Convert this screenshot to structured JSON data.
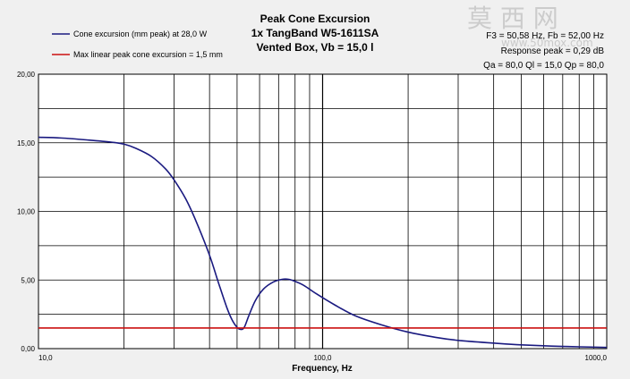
{
  "chart_data": {
    "type": "line",
    "title_lines": [
      "Peak Cone Excursion",
      "1x TangBand W5-1611SA",
      "Vented Box, Vb = 15,0 l"
    ],
    "info_lines": [
      "F3 = 50,58 Hz, Fb = 52,00 Hz",
      "Response peak = 0,29 dB",
      "Qa = 80,0  Ql = 15,0  Qp = 80,0"
    ],
    "watermark": "莫 西 网",
    "watermark_sub": "www.50mox.com",
    "xlabel": "Frequency, Hz",
    "x_scale": "log",
    "xlim": [
      10,
      1000
    ],
    "ylim": [
      0,
      20
    ],
    "x_tick_labels": [
      {
        "value": 10,
        "label": "10,0"
      },
      {
        "value": 100,
        "label": "100,0"
      },
      {
        "value": 1000,
        "label": "1000,0"
      }
    ],
    "y_tick_labels": [
      {
        "value": 0,
        "label": "0,00"
      },
      {
        "value": 5,
        "label": "5,00"
      },
      {
        "value": 10,
        "label": "10,00"
      },
      {
        "value": 15,
        "label": "15,00"
      },
      {
        "value": 20,
        "label": "20,00"
      }
    ],
    "grid": true,
    "legend_position": "top-left",
    "series": [
      {
        "name": "Cone excursion (mm peak) at 28,0 W",
        "color": "#1a1a80",
        "x": [
          10,
          12,
          15,
          18,
          20,
          22,
          25,
          28,
          30,
          33,
          36,
          40,
          43,
          46,
          48,
          50,
          51.5,
          53,
          55,
          58,
          62,
          67,
          72,
          76,
          80,
          86,
          95,
          110,
          130,
          160,
          200,
          250,
          300,
          400,
          500,
          700,
          1000
        ],
        "y": [
          15.4,
          15.35,
          15.2,
          15.05,
          14.9,
          14.6,
          14.0,
          13.1,
          12.3,
          10.9,
          9.2,
          6.8,
          4.8,
          3.0,
          2.1,
          1.55,
          1.4,
          1.55,
          2.4,
          3.5,
          4.35,
          4.85,
          5.05,
          5.05,
          4.9,
          4.6,
          4.0,
          3.2,
          2.4,
          1.75,
          1.2,
          0.82,
          0.6,
          0.4,
          0.27,
          0.16,
          0.09
        ]
      },
      {
        "name": "Max linear peak cone excursion = 1,5 mm",
        "color": "#cc1010",
        "x": [
          10,
          1000
        ],
        "y": [
          1.5,
          1.5
        ]
      }
    ]
  }
}
